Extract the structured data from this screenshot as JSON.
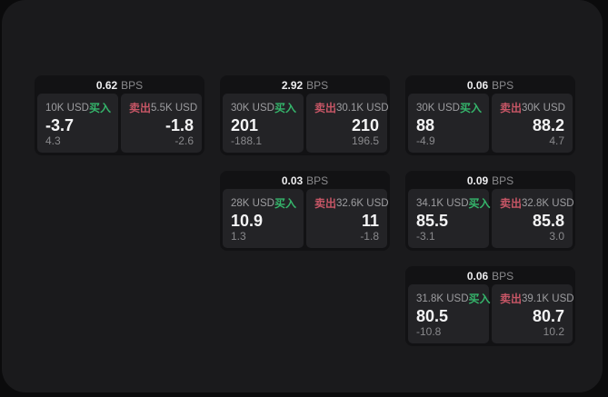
{
  "labels": {
    "bps_unit": "BPS",
    "buy": "买入",
    "sell": "卖出"
  },
  "colors": {
    "background": "#0b0b0c",
    "panel": "#1a1a1c",
    "card": "#121214",
    "pane": "#232326",
    "buy_green": "#35b56b",
    "sell_red": "#c75666",
    "value_white": "#f4f4f5",
    "label_gray": "#9d9da0"
  },
  "cards": [
    {
      "row": 1,
      "col": 1,
      "bps": "0.62",
      "buy": {
        "amount": "10K USD",
        "price": "-3.7",
        "delta": "4.3"
      },
      "sell": {
        "amount": "5.5K USD",
        "price": "-1.8",
        "delta": "-2.6"
      }
    },
    {
      "row": 1,
      "col": 2,
      "bps": "2.92",
      "buy": {
        "amount": "30K USD",
        "price": "201",
        "delta": "-188.1"
      },
      "sell": {
        "amount": "30.1K USD",
        "price": "210",
        "delta": "196.5"
      }
    },
    {
      "row": 1,
      "col": 3,
      "bps": "0.06",
      "buy": {
        "amount": "30K USD",
        "price": "88",
        "delta": "-4.9"
      },
      "sell": {
        "amount": "30K USD",
        "price": "88.2",
        "delta": "4.7"
      }
    },
    {
      "row": 2,
      "col": 2,
      "bps": "0.03",
      "buy": {
        "amount": "28K USD",
        "price": "10.9",
        "delta": "1.3"
      },
      "sell": {
        "amount": "32.6K USD",
        "price": "11",
        "delta": "-1.8"
      }
    },
    {
      "row": 2,
      "col": 3,
      "bps": "0.09",
      "buy": {
        "amount": "34.1K USD",
        "price": "85.5",
        "delta": "-3.1"
      },
      "sell": {
        "amount": "32.8K USD",
        "price": "85.8",
        "delta": "3.0"
      }
    },
    {
      "row": 3,
      "col": 3,
      "bps": "0.06",
      "buy": {
        "amount": "31.8K USD",
        "price": "80.5",
        "delta": "-10.8"
      },
      "sell": {
        "amount": "39.1K USD",
        "price": "80.7",
        "delta": "10.2"
      }
    }
  ]
}
